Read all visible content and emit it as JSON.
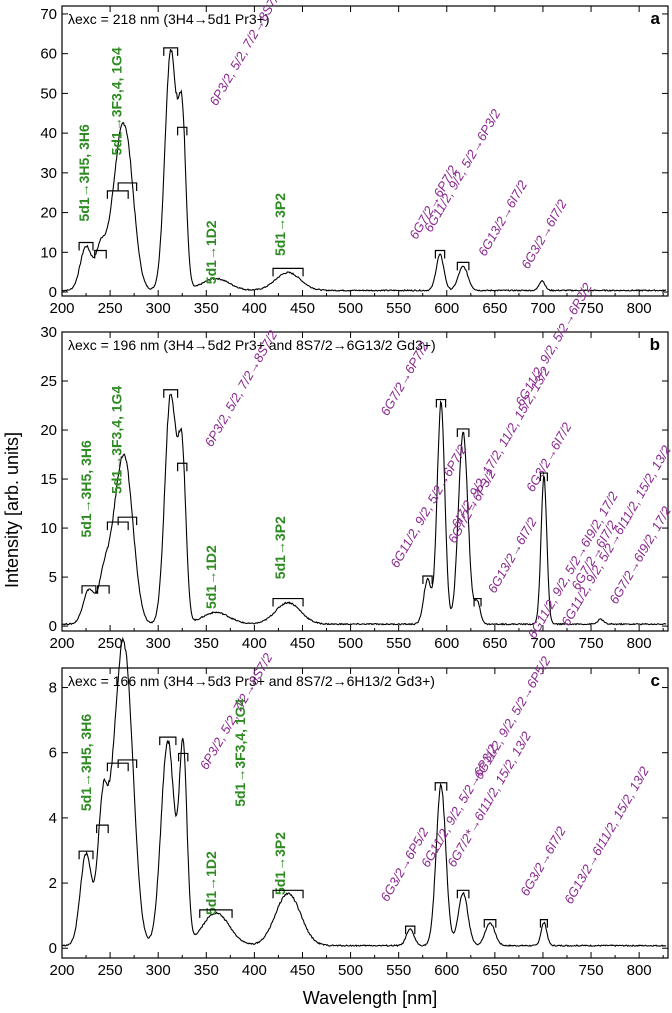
{
  "figure": {
    "xlabel": "Wavelength [nm]",
    "ylabel": "Intensity [arb. units]",
    "colors": {
      "green": "#2e8b22",
      "purple": "#8a2a8f",
      "line": "#000000"
    }
  },
  "chart_data": [
    {
      "type": "line",
      "panel": "a",
      "title": "λexc = 218 nm (3H4→5d1 Pr3+)",
      "xlim": [
        200,
        830
      ],
      "ylim": [
        -1,
        72
      ],
      "xticks": [
        200,
        250,
        300,
        350,
        400,
        450,
        500,
        550,
        600,
        650,
        700,
        750,
        800
      ],
      "yticks": [
        0,
        10,
        20,
        30,
        40,
        50,
        60,
        70
      ],
      "peaks": [
        {
          "x": 225,
          "h": 11,
          "w": 6
        },
        {
          "x": 240,
          "h": 9,
          "w": 5
        },
        {
          "x": 258,
          "h": 24,
          "w": 9
        },
        {
          "x": 268,
          "h": 26,
          "w": 8
        },
        {
          "x": 313,
          "h": 60,
          "w": 6
        },
        {
          "x": 325,
          "h": 40,
          "w": 4
        },
        {
          "x": 360,
          "h": 3,
          "w": 14
        },
        {
          "x": 435,
          "h": 4.5,
          "w": 13
        },
        {
          "x": 593,
          "h": 9,
          "w": 4
        },
        {
          "x": 617,
          "h": 6,
          "w": 5
        },
        {
          "x": 699,
          "h": 2.5,
          "w": 3
        }
      ],
      "baseline": 0.4,
      "annotations": {
        "green": [
          {
            "text": "5d1→3H5, 3H6",
            "x": 228,
            "y": 30
          },
          {
            "text": "5d1→3F3,4, 1G4",
            "x": 262,
            "y": 48
          },
          {
            "text": "5d1→1D2",
            "x": 360,
            "y": 10
          },
          {
            "text": "5d1→3P2",
            "x": 432,
            "y": 17
          }
        ],
        "purple": [
          {
            "text": "6P3/2, 5/2, 7/2→8S7/2",
            "x": 395,
            "y": 61
          },
          {
            "text": "6G7/2→6P7/2",
            "x": 590,
            "y": 22
          },
          {
            "text": "6G11/2, 9/2, 5/2→6P3/2",
            "x": 620,
            "y": 30
          },
          {
            "text": "6G13/2→6I7/2",
            "x": 662,
            "y": 18
          },
          {
            "text": "6G3/2→6I7/2",
            "x": 705,
            "y": 14
          }
        ]
      }
    },
    {
      "type": "line",
      "panel": "b",
      "title": "λexc = 196 nm (3H4→5d2 Pr3+ and 8S7/2→6G13/2 Gd3+)",
      "xlim": [
        200,
        830
      ],
      "ylim": [
        -0.5,
        30
      ],
      "xticks": [
        200,
        250,
        300,
        350,
        400,
        450,
        500,
        550,
        600,
        650,
        700,
        750,
        800
      ],
      "yticks": [
        0,
        5,
        10,
        15,
        20,
        25,
        30
      ],
      "peaks": [
        {
          "x": 228,
          "h": 3.5,
          "w": 6
        },
        {
          "x": 243,
          "h": 3.5,
          "w": 5
        },
        {
          "x": 258,
          "h": 10,
          "w": 9
        },
        {
          "x": 268,
          "h": 10.5,
          "w": 8
        },
        {
          "x": 313,
          "h": 23.5,
          "w": 6
        },
        {
          "x": 325,
          "h": 16,
          "w": 4
        },
        {
          "x": 360,
          "h": 1.2,
          "w": 14
        },
        {
          "x": 435,
          "h": 2.2,
          "w": 13
        },
        {
          "x": 580,
          "h": 4.5,
          "w": 4
        },
        {
          "x": 594,
          "h": 22.5,
          "w": 4
        },
        {
          "x": 617,
          "h": 19.5,
          "w": 5
        },
        {
          "x": 632,
          "h": 2.2,
          "w": 3
        },
        {
          "x": 701,
          "h": 15,
          "w": 3
        },
        {
          "x": 760,
          "h": 0.5,
          "w": 3
        }
      ],
      "baseline": 0.2,
      "annotations": {
        "green": [
          {
            "text": "5d1→3H5, 3H6",
            "x": 230,
            "y": 14
          },
          {
            "text": "5d1→3F3,4, 1G4",
            "x": 262,
            "y": 19
          },
          {
            "text": "5d1→1D2",
            "x": 360,
            "y": 5
          },
          {
            "text": "5d1→3P2",
            "x": 432,
            "y": 8
          }
        ],
        "purple": [
          {
            "text": "6P3/2, 5/2, 7/2→8S7/2",
            "x": 390,
            "y": 24
          },
          {
            "text": "6G7/2→6P7/2",
            "x": 560,
            "y": 25
          },
          {
            "text": "6G11/2, 9/2, 5/2→6P3/2",
            "x": 715,
            "y": 28.5
          },
          {
            "text": "6G11/2, 9/2, 5/2→6P7/2",
            "x": 585,
            "y": 12
          },
          {
            "text": "6G7/2→6P3/2",
            "x": 630,
            "y": 12
          },
          {
            "text": "6I7/2, 9/2, 17/2, 11/2, 15/2, 13/2",
            "x": 660,
            "y": 18
          },
          {
            "text": "6G13/2→6I7/2",
            "x": 672,
            "y": 7
          },
          {
            "text": "6G3/2→6I7/2",
            "x": 710,
            "y": 17
          },
          {
            "text": "6G11/2, 9/2, 5/2→6I9/2, 17/2",
            "x": 735,
            "y": 6
          },
          {
            "text": "6G7/2→6I7/2",
            "x": 757,
            "y": 7
          },
          {
            "text": "6G11/2, 9/2, 5/2→6I11/2, 15/2, 13/2",
            "x": 780,
            "y": 9
          },
          {
            "text": "6G7/2→6I9/2, 17/2",
            "x": 805,
            "y": 7
          }
        ]
      }
    },
    {
      "type": "line",
      "panel": "c",
      "title": "λexc = 166 nm (3H4→5d3 Pr3+ and 8S7/2→6H13/2 Gd3+)",
      "xlim": [
        200,
        830
      ],
      "ylim": [
        -0.3,
        8.6
      ],
      "xticks": [
        200,
        250,
        300,
        350,
        400,
        450,
        500,
        550,
        600,
        650,
        700,
        750,
        800
      ],
      "yticks": [
        0,
        2,
        4,
        6,
        8
      ],
      "peaks": [
        {
          "x": 225,
          "h": 2.8,
          "w": 6
        },
        {
          "x": 242,
          "h": 3.6,
          "w": 5
        },
        {
          "x": 258,
          "h": 5.5,
          "w": 9
        },
        {
          "x": 268,
          "h": 5.6,
          "w": 8
        },
        {
          "x": 310,
          "h": 6.3,
          "w": 7
        },
        {
          "x": 326,
          "h": 5.8,
          "w": 4
        },
        {
          "x": 360,
          "h": 1.0,
          "w": 14
        },
        {
          "x": 435,
          "h": 1.6,
          "w": 13
        },
        {
          "x": 562,
          "h": 0.5,
          "w": 4
        },
        {
          "x": 594,
          "h": 4.9,
          "w": 5
        },
        {
          "x": 617,
          "h": 1.6,
          "w": 5
        },
        {
          "x": 645,
          "h": 0.7,
          "w": 5
        },
        {
          "x": 701,
          "h": 0.7,
          "w": 3
        }
      ],
      "baseline": 0.08,
      "annotations": {
        "green": [
          {
            "text": "5d1→3H5, 3H6",
            "x": 230,
            "y": 5.7
          },
          {
            "text": "5d1→3F3,4, 1G4",
            "x": 390,
            "y": 6.0
          },
          {
            "text": "5d1→1D2",
            "x": 360,
            "y": 2.0
          },
          {
            "text": "5d1→3P2",
            "x": 432,
            "y": 2.6
          }
        ],
        "purple": [
          {
            "text": "6P3/2, 5/2, 7/2→8S7/2",
            "x": 385,
            "y": 7.2
          },
          {
            "text": "6G11/2, 9/2, 5/2→6P5/2",
            "x": 672,
            "y": 7.0
          },
          {
            "text": "6G3/2→6P5/2",
            "x": 560,
            "y": 2.5
          },
          {
            "text": "6G11/2, 9/2, 5/2→6P3/2",
            "x": 617,
            "y": 4.3
          },
          {
            "text": "6G7/2*→6I11/2, 15/2, 13/2",
            "x": 648,
            "y": 4.5
          },
          {
            "text": "6G3/2→6I7/2",
            "x": 704,
            "y": 2.6
          },
          {
            "text": "6G13/2→6I11/2, 15/2, 13/2",
            "x": 770,
            "y": 3.4
          }
        ]
      }
    }
  ]
}
